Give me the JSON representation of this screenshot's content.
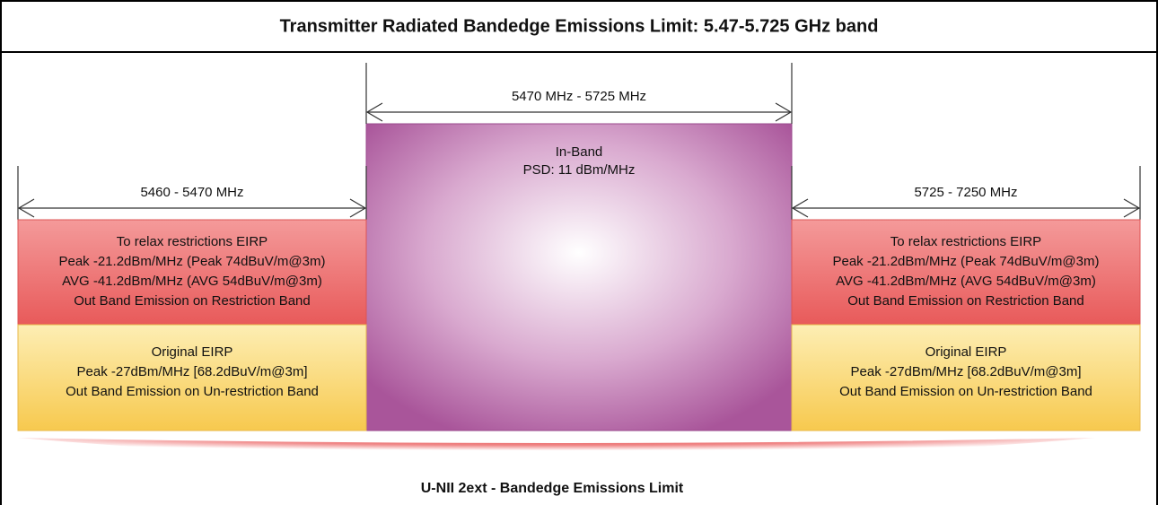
{
  "header": {
    "title": "Transmitter Radiated Bandedge Emissions Limit: 5.47-5.725 GHz band"
  },
  "in_band": {
    "label": "In-Band",
    "psd": "PSD: 11 dBm/MHz",
    "range": "5470 MHz - 5725 MHz"
  },
  "left": {
    "range": "5460 - 5470 MHz",
    "restricted": [
      "To relax restrictions EIRP",
      "Peak -21.2dBm/MHz (Peak 74dBuV/m@3m)",
      "AVG -41.2dBm/MHz (AVG 54dBuV/m@3m)",
      "Out Band Emission on Restriction Band"
    ],
    "original": [
      "Original EIRP",
      "Peak -27dBm/MHz [68.2dBuV/m@3m]",
      "Out Band Emission on Un-restriction Band"
    ]
  },
  "right": {
    "range": "5725 - 7250 MHz",
    "restricted": [
      "To relax restrictions EIRP",
      "Peak -21.2dBm/MHz (Peak 74dBuV/m@3m)",
      "AVG -41.2dBm/MHz (AVG 54dBuV/m@3m)",
      "Out Band Emission on Restriction Band"
    ],
    "original": [
      "Original EIRP",
      "Peak -27dBm/MHz [68.2dBuV/m@3m]",
      "Out Band Emission on Un-restriction Band"
    ]
  },
  "footer": {
    "label": "U-NII 2ext - Bandedge Emissions Limit"
  }
}
